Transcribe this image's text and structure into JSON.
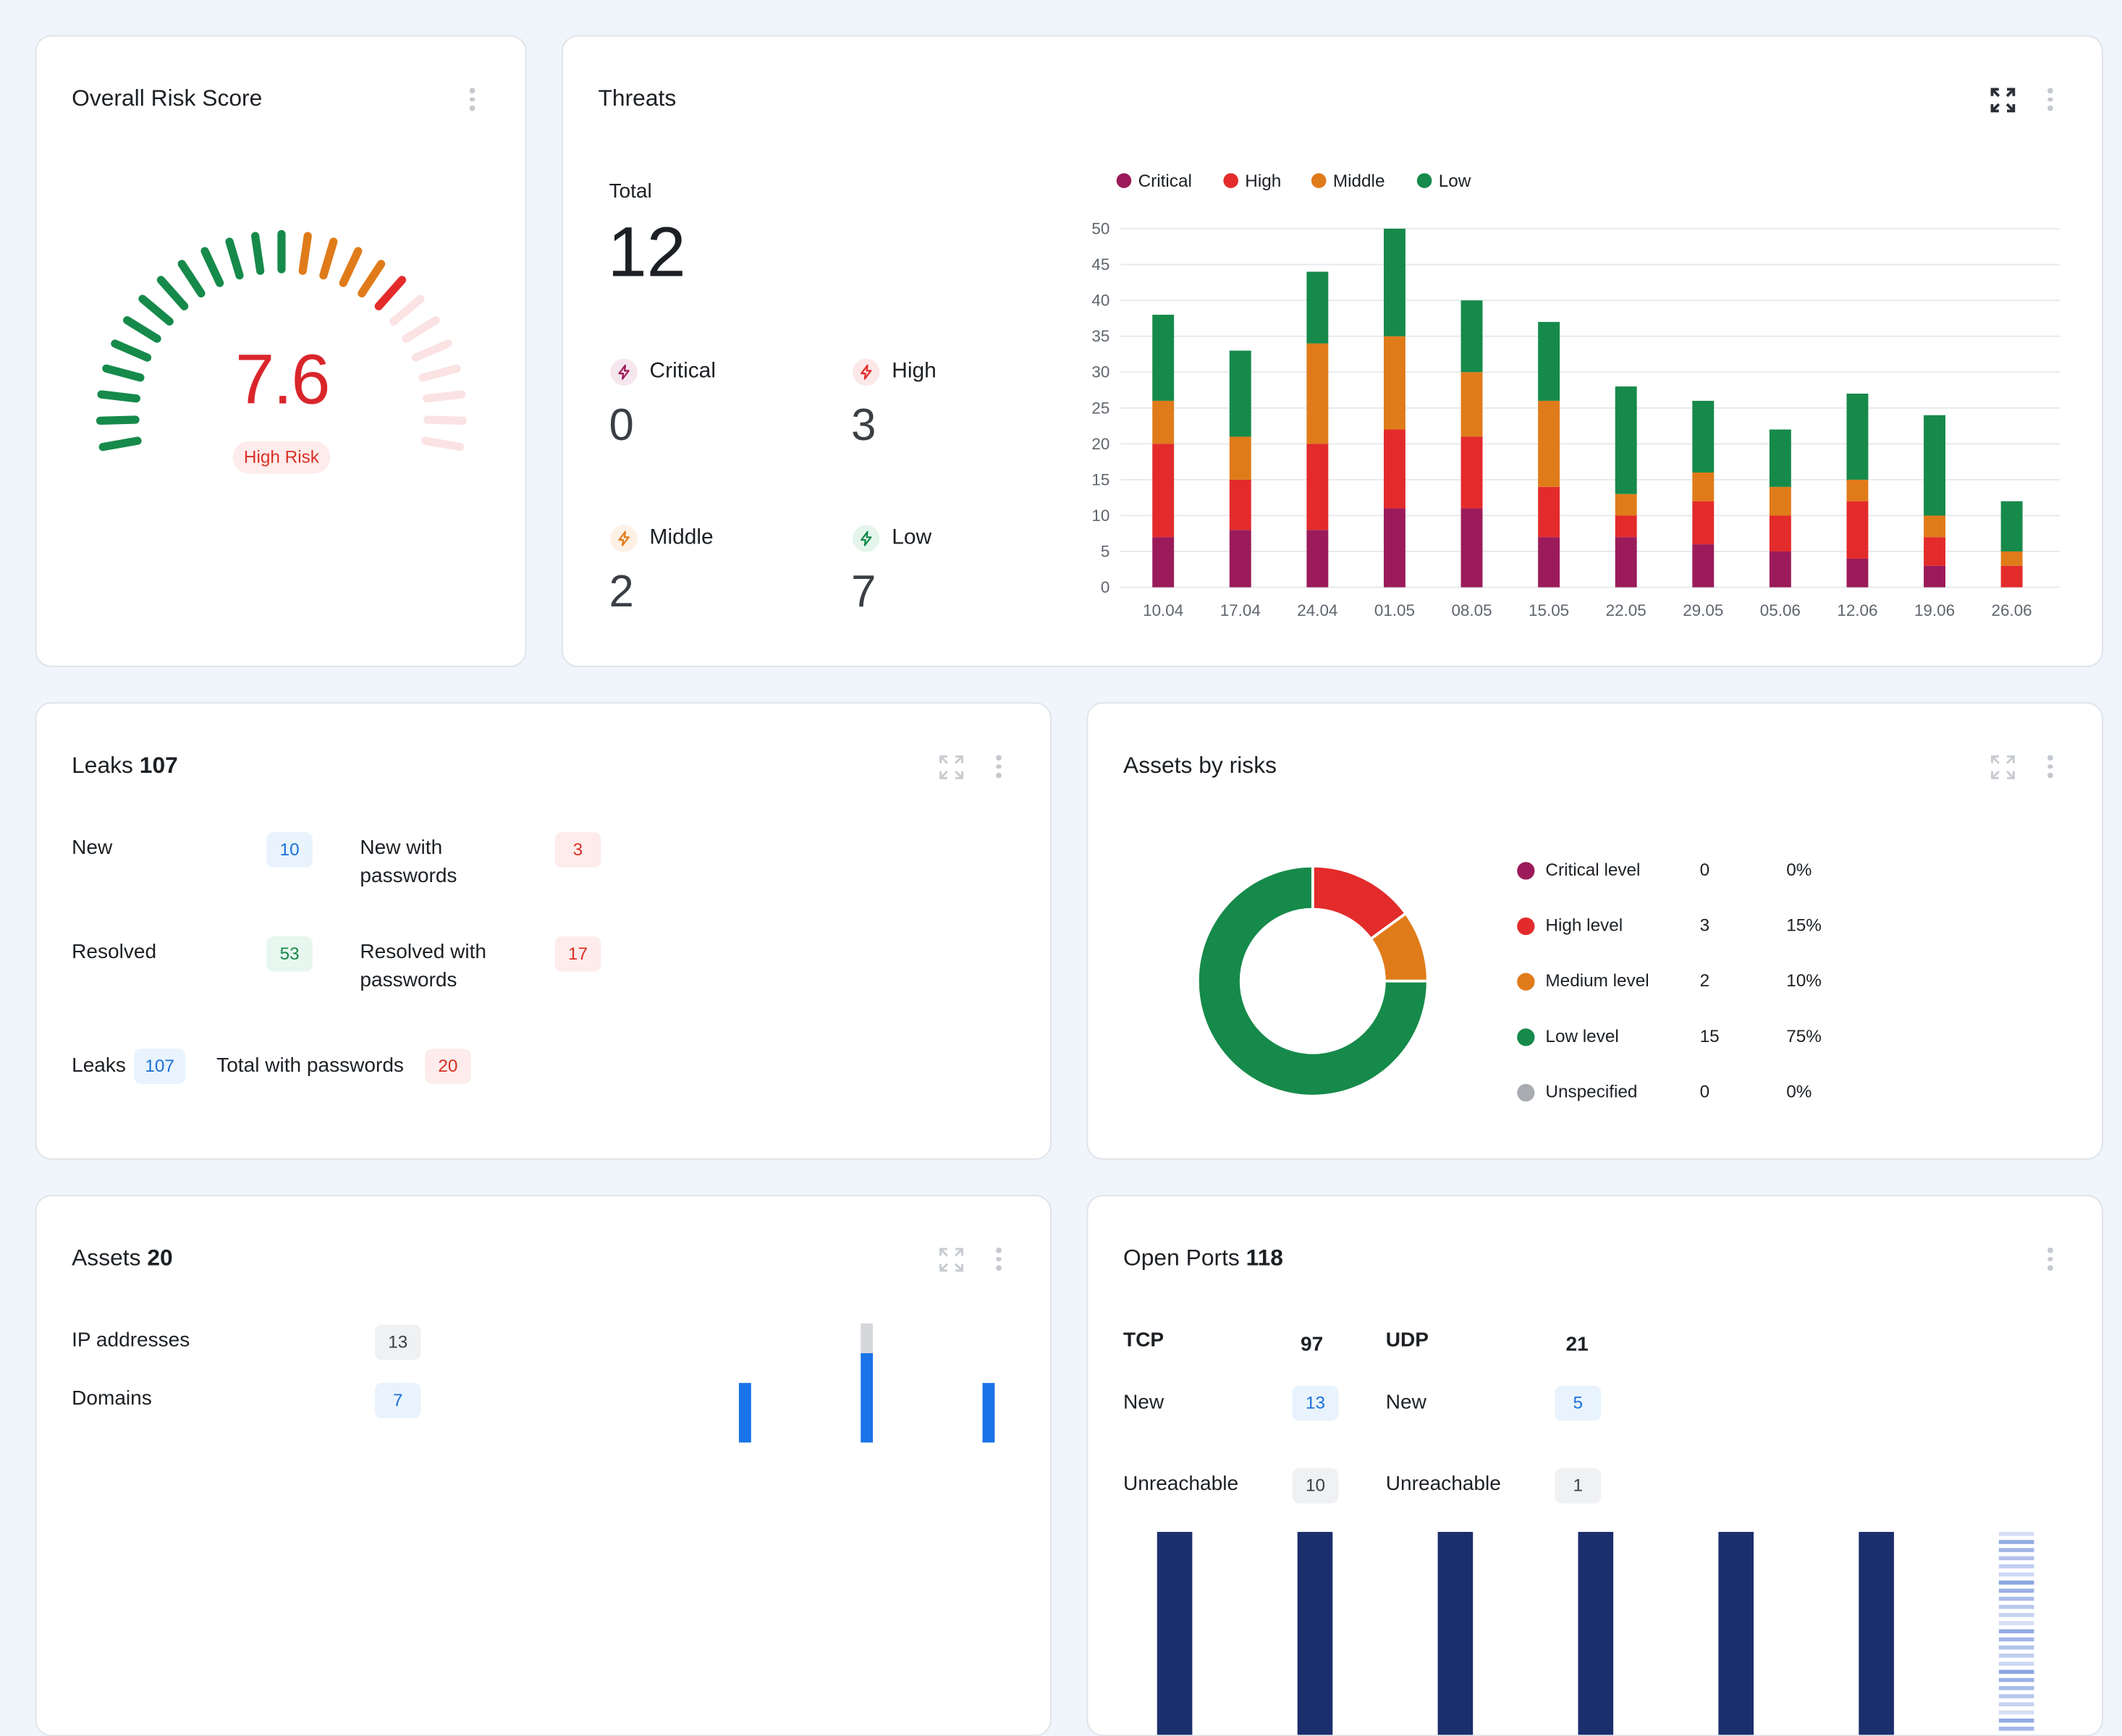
{
  "risk": {
    "title": "Overall Risk Score",
    "score": "7.6",
    "level": "High Risk",
    "active_ticks": 18,
    "total_ticks": 25
  },
  "threats": {
    "title": "Threats",
    "total_label": "Total",
    "total": "12",
    "severities": [
      {
        "label": "Critical",
        "value": "0",
        "color": "#9b1b5a",
        "bg": "#f6e6ee"
      },
      {
        "label": "High",
        "value": "3",
        "color": "#e32b2b",
        "bg": "#fde8e8"
      },
      {
        "label": "Middle",
        "value": "2",
        "color": "#e07b1a",
        "bg": "#fdf0e4"
      },
      {
        "label": "Low",
        "value": "7",
        "color": "#168a4a",
        "bg": "#e5f5ec"
      }
    ]
  },
  "chart_data": {
    "type": "bar",
    "stacked": true,
    "categories": [
      "10.04",
      "17.04",
      "24.04",
      "01.05",
      "08.05",
      "15.05",
      "22.05",
      "29.05",
      "05.06",
      "12.06",
      "19.06",
      "26.06"
    ],
    "series": [
      {
        "name": "Critical",
        "color": "#9b1b5a",
        "values": [
          7,
          8,
          8,
          11,
          11,
          7,
          7,
          6,
          5,
          4,
          3,
          0
        ]
      },
      {
        "name": "High",
        "color": "#e32b2b",
        "values": [
          13,
          7,
          12,
          11,
          10,
          7,
          3,
          6,
          5,
          8,
          4,
          3
        ]
      },
      {
        "name": "Middle",
        "color": "#e07b1a",
        "values": [
          6,
          6,
          14,
          13,
          9,
          12,
          3,
          4,
          4,
          3,
          3,
          2
        ]
      },
      {
        "name": "Low",
        "color": "#168a4a",
        "values": [
          12,
          12,
          10,
          15,
          10,
          11,
          15,
          10,
          8,
          12,
          14,
          7
        ]
      }
    ],
    "yticks": [
      0,
      5,
      10,
      15,
      20,
      25,
      30,
      35,
      40,
      45,
      50
    ],
    "ylim": [
      0,
      50
    ],
    "grid": true,
    "legend_position": "top-left"
  },
  "leaks": {
    "title": "Leaks",
    "count": "107",
    "rows": [
      {
        "label": "New",
        "value": "10"
      },
      {
        "label": "New with passwords",
        "value": "3"
      },
      {
        "label": "Resolved",
        "value": "53"
      },
      {
        "label": "Resolved with passwords",
        "value": "17"
      }
    ],
    "footer": [
      {
        "label": "Leaks",
        "value": "107"
      },
      {
        "label": "Total with passwords",
        "value": "20"
      }
    ]
  },
  "assets_by_risks": {
    "title": "Assets by risks",
    "rows": [
      {
        "label": "Critical level",
        "count": "0",
        "pct": "0%",
        "color": "#9b1b5a"
      },
      {
        "label": "High level",
        "count": "3",
        "pct": "15%",
        "color": "#e32b2b"
      },
      {
        "label": "Medium level",
        "count": "2",
        "pct": "10%",
        "color": "#e07b1a"
      },
      {
        "label": "Low level",
        "count": "15",
        "pct": "75%",
        "color": "#168a4a"
      },
      {
        "label": "Unspecified",
        "count": "0",
        "pct": "0%",
        "color": "#a9adb2"
      }
    ]
  },
  "assets": {
    "title": "Assets",
    "count": "20",
    "rows": [
      {
        "label": "IP addresses",
        "value": "13"
      },
      {
        "label": "Domains",
        "value": "7"
      }
    ],
    "mini_bars": [
      {
        "blue": 0.5,
        "gray": 0
      },
      {
        "blue": 0.75,
        "gray": 0.25
      },
      {
        "blue": 0.5,
        "gray": 0
      }
    ]
  },
  "ports": {
    "title": "Open Ports",
    "count": "118",
    "tcp": {
      "label": "TCP",
      "value": "97",
      "new_label": "New",
      "new": "13",
      "unreach_label": "Unreachable",
      "unreach": "10"
    },
    "udp": {
      "label": "UDP",
      "value": "21",
      "new_label": "New",
      "new": "5",
      "unreach_label": "Unreachable",
      "unreach": "1"
    }
  }
}
